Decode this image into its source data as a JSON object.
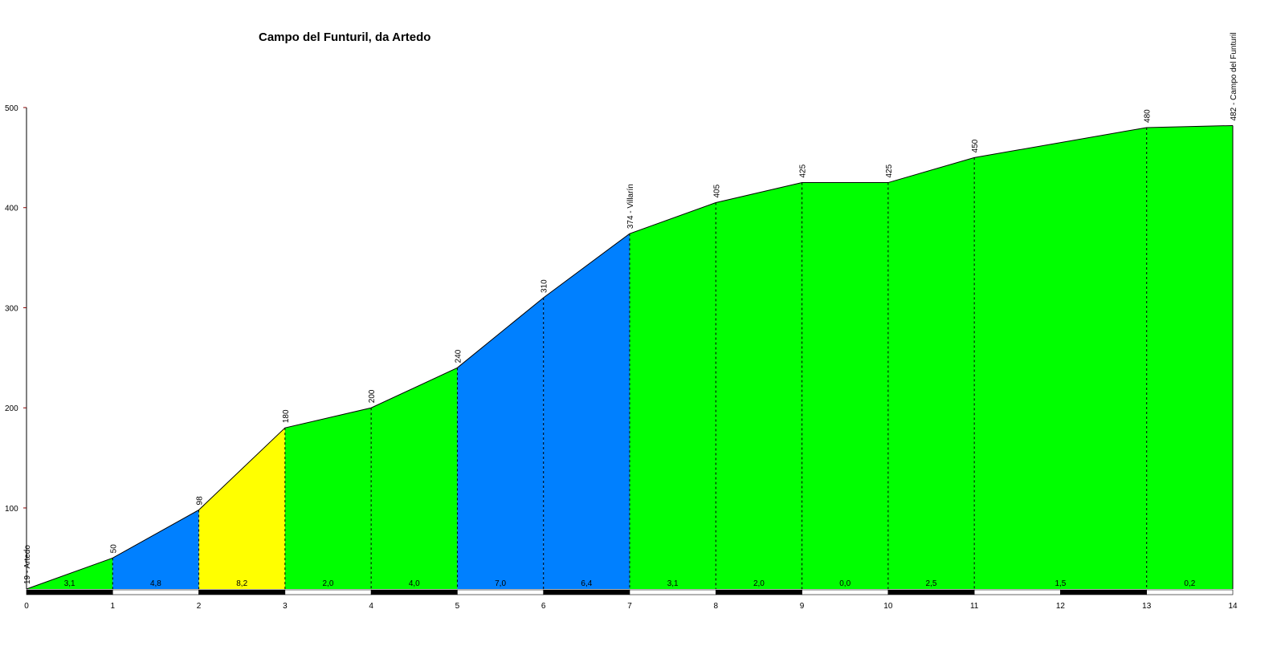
{
  "chart_data": {
    "type": "area",
    "title": "Campo del Funturil, da Artedo",
    "xlabel": "",
    "ylabel": "",
    "xlim": [
      0,
      14
    ],
    "ylim": [
      19,
      500
    ],
    "x_ticks": [
      "0",
      "1",
      "2",
      "3",
      "4",
      "5",
      "6",
      "7",
      "8",
      "9",
      "10",
      "11",
      "12",
      "13",
      "14"
    ],
    "y_ticks": [
      "100",
      "200",
      "300",
      "400",
      "500"
    ],
    "x": [
      0,
      1,
      2,
      3,
      4,
      5,
      6,
      7,
      8,
      9,
      10,
      11,
      13,
      14
    ],
    "elevation": [
      19,
      50,
      98,
      180,
      200,
      240,
      310,
      374,
      405,
      425,
      425,
      450,
      480,
      482
    ],
    "point_labels": [
      "19 - Artedo",
      "50",
      "98",
      "180",
      "200",
      "240",
      "310",
      "374 - Villarín",
      "405",
      "425",
      "425",
      "450",
      "480",
      "482 - Campo del Funturil"
    ],
    "segments": [
      {
        "from": 0,
        "to": 1,
        "gradient": "3,1",
        "color": "#00ff00"
      },
      {
        "from": 1,
        "to": 2,
        "gradient": "4,8",
        "color": "#0080ff"
      },
      {
        "from": 2,
        "to": 3,
        "gradient": "8,2",
        "color": "#ffff00"
      },
      {
        "from": 3,
        "to": 4,
        "gradient": "2,0",
        "color": "#00ff00"
      },
      {
        "from": 4,
        "to": 5,
        "gradient": "4,0",
        "color": "#00ff00"
      },
      {
        "from": 5,
        "to": 6,
        "gradient": "7,0",
        "color": "#0080ff"
      },
      {
        "from": 6,
        "to": 7,
        "gradient": "6,4",
        "color": "#0080ff"
      },
      {
        "from": 7,
        "to": 8,
        "gradient": "3,1",
        "color": "#00ff00"
      },
      {
        "from": 8,
        "to": 9,
        "gradient": "2,0",
        "color": "#00ff00"
      },
      {
        "from": 9,
        "to": 10,
        "gradient": "0,0",
        "color": "#00ff00"
      },
      {
        "from": 10,
        "to": 11,
        "gradient": "2,5",
        "color": "#00ff00"
      },
      {
        "from": 11,
        "to": 13,
        "gradient": "1,5",
        "color": "#00ff00"
      },
      {
        "from": 13,
        "to": 14,
        "gradient": "0,2",
        "color": "#00ff00"
      }
    ],
    "grid": false,
    "legend": "none"
  }
}
